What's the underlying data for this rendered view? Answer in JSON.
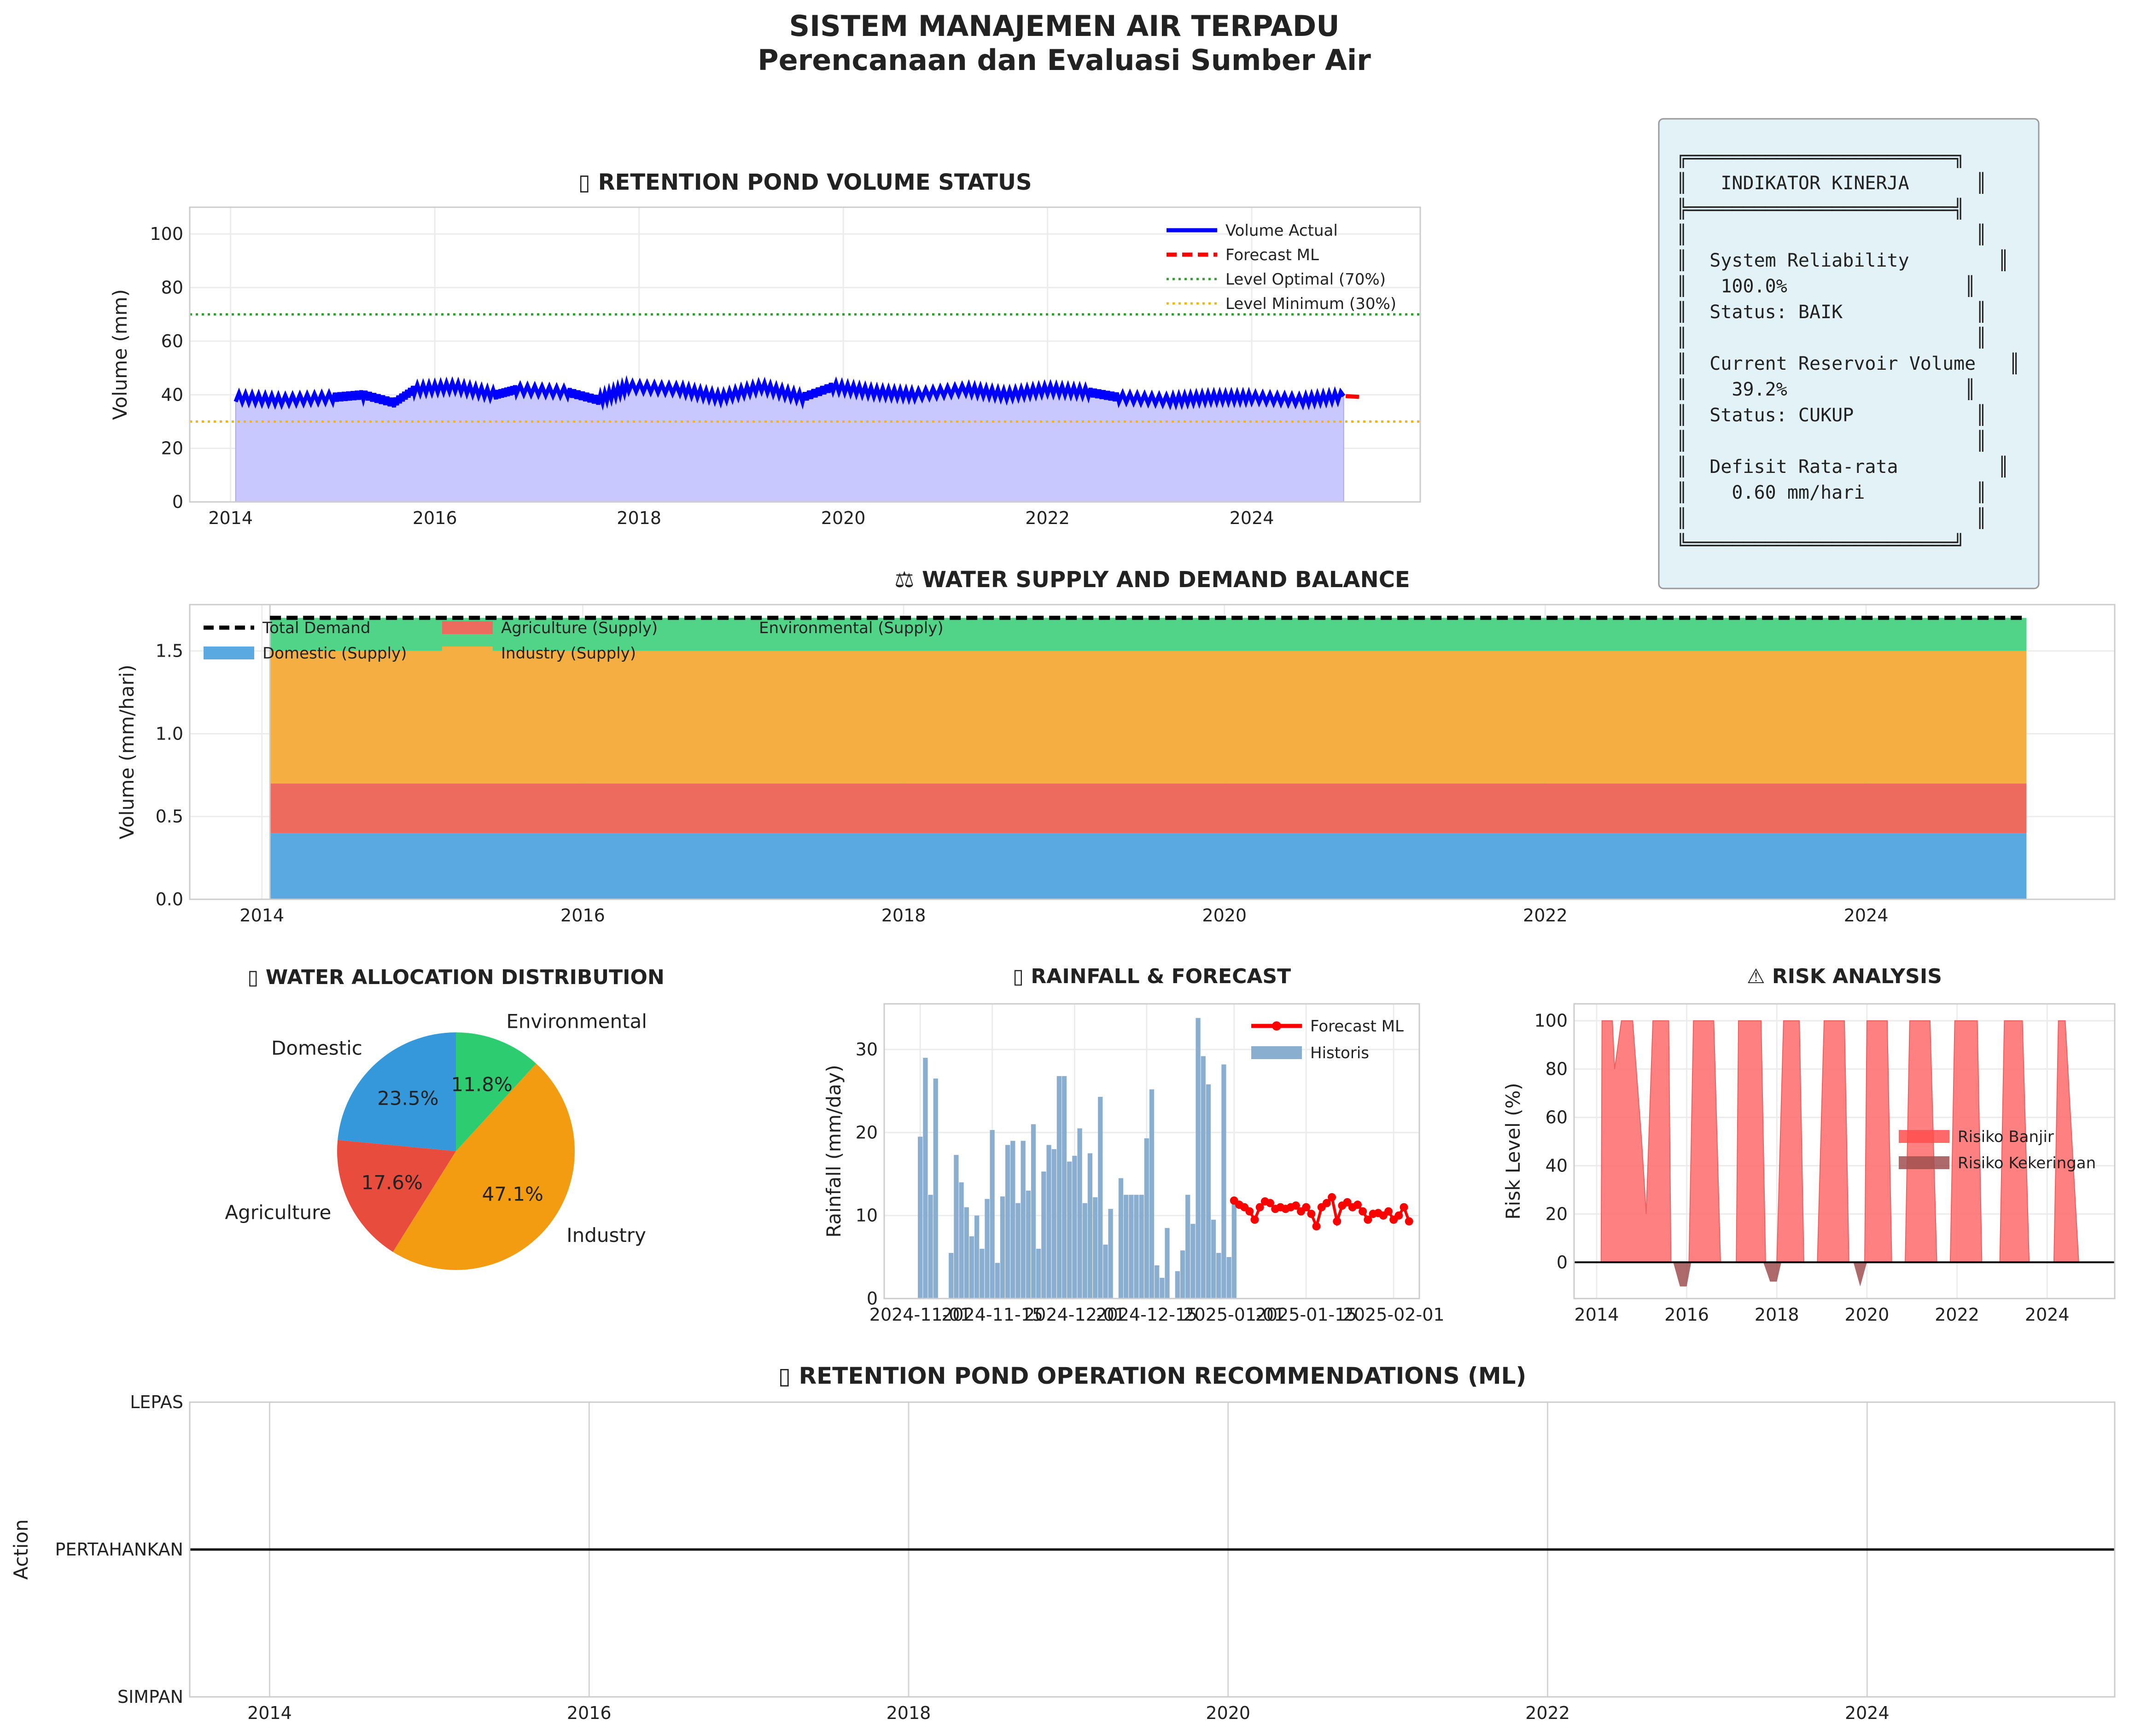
{
  "header": {
    "title": "SISTEM MANAJEMEN AIR TERPADU",
    "subtitle": "Perencanaan dan Evaluasi Sumber Air"
  },
  "kpi_box": {
    "lines": [
      "╔════════════════════════╗",
      "║   INDIKATOR KINERJA      ║",
      "╠════════════════════════╣",
      "║                          ║",
      "║  System Reliability        ║",
      "║   100.0%                ║",
      "║  Status: BAIK            ║",
      "║                          ║",
      "║  Current Reservoir Volume   ║",
      "║    39.2%                ║",
      "║  Status: CUKUP           ║",
      "║                          ║",
      "║  Defisit Rata-rata         ║",
      "║    0.60 mm/hari          ║",
      "║                          ║",
      "╚════════════════════════╝"
    ],
    "bg_color": "#e3f2f6"
  },
  "chart_data": [
    {
      "id": "volume",
      "type": "line",
      "title": "▯ RETENTION POND VOLUME STATUS",
      "ylabel": "Volume (mm)",
      "xlabel": "",
      "xlim": [
        2013.6,
        2025.65
      ],
      "ylim": [
        0,
        110
      ],
      "xticks": [
        2014,
        2016,
        2018,
        2020,
        2022,
        2024
      ],
      "yticks": [
        0,
        20,
        40,
        60,
        80,
        100
      ],
      "grid": true,
      "legend_position": "top-right",
      "series": [
        {
          "name": "Volume Actual",
          "color": "#0000ff",
          "style": "solid",
          "x": [
            2014.05,
            2014.5,
            2015.0,
            2015.3,
            2015.6,
            2015.8,
            2016.2,
            2016.6,
            2016.8,
            2017.3,
            2017.6,
            2017.9,
            2018.4,
            2018.8,
            2019.2,
            2019.6,
            2019.9,
            2020.3,
            2020.7,
            2021.2,
            2021.6,
            2022.0,
            2022.4,
            2022.7,
            2023.2,
            2023.6,
            2024.0,
            2024.5,
            2024.9
          ],
          "y": [
            39,
            38,
            39,
            40,
            37,
            42,
            43,
            40,
            42,
            41,
            38,
            43,
            42,
            39,
            43,
            39,
            43,
            41,
            40,
            42,
            40,
            42,
            41,
            39,
            38,
            39,
            39,
            38,
            39.5
          ]
        },
        {
          "name": "Forecast ML",
          "color": "#ff0000",
          "style": "dashed",
          "x": [
            2024.92,
            2025.05
          ],
          "y": [
            39.5,
            39.2
          ]
        },
        {
          "name": "Level Optimal (70%)",
          "color": "#2ca02c",
          "style": "dotted",
          "value": 70
        },
        {
          "name": "Level Minimum (30%)",
          "color": "#f5b800",
          "style": "dotted",
          "value": 30
        }
      ]
    },
    {
      "id": "balance",
      "type": "area",
      "title": "⚖ WATER SUPPLY AND DEMAND BALANCE",
      "ylabel": "Volume (mm/hari)",
      "xlabel": "",
      "xlim": [
        2013.55,
        2025.55
      ],
      "ylim": [
        0,
        1.78
      ],
      "xticks": [
        2014,
        2016,
        2018,
        2020,
        2022,
        2024
      ],
      "yticks": [
        0.0,
        0.5,
        1.0,
        1.5
      ],
      "grid": true,
      "legend_position": "top-left",
      "x_range": [
        2014.05,
        2025.0
      ],
      "series": [
        {
          "name": "Domestic (Supply)",
          "color": "#5aa9e0",
          "value": 0.4
        },
        {
          "name": "Agriculture (Supply)",
          "color": "#ec6a5e",
          "value": 0.3
        },
        {
          "name": "Industry (Supply)",
          "color": "#f5ae42",
          "value": 0.8
        },
        {
          "name": "Environmental (Supply)",
          "color": "#52d488",
          "value": 0.2
        }
      ],
      "demand": {
        "name": "Total Demand",
        "color": "#000000",
        "value": 1.7
      }
    },
    {
      "id": "allocation",
      "type": "pie",
      "title": "▯ WATER ALLOCATION DISTRIBUTION",
      "slices": [
        {
          "label": "Domestic",
          "value": 23.5,
          "pct": "23.5%",
          "color": "#3498db"
        },
        {
          "label": "Agriculture",
          "value": 17.6,
          "pct": "17.6%",
          "color": "#e74c3c"
        },
        {
          "label": "Industry",
          "value": 47.1,
          "pct": "47.1%",
          "color": "#f39c12"
        },
        {
          "label": "Environmental",
          "value": 11.8,
          "pct": "11.8%",
          "color": "#2ecc71"
        }
      ]
    },
    {
      "id": "rainfall",
      "type": "bar",
      "title": "▯ RAINFALL & FORECAST",
      "ylabel": "Rainfall (mm/day)",
      "xlabel": "",
      "xlim": [
        -7,
        97
      ],
      "ylim": [
        0,
        35.5
      ],
      "xticks": [
        0,
        14,
        30,
        44,
        61,
        75,
        92
      ],
      "xticklabels": [
        "2024-11-01",
        "2024-11-15",
        "2024-12-01",
        "2024-12-15",
        "2025-01-01",
        "2025-01-15",
        "2025-02-01"
      ],
      "yticks": [
        0,
        10,
        20,
        30
      ],
      "grid": true,
      "legend_position": "top-right",
      "historis": {
        "name": "Historis",
        "color": "#8aaed0",
        "x_start": 0,
        "values": [
          19.5,
          29,
          12.5,
          26.5,
          0,
          0,
          5.5,
          17.3,
          14,
          11,
          7.5,
          10,
          6,
          12,
          20.3,
          4.3,
          12.3,
          18.5,
          19,
          11.5,
          19,
          13,
          21,
          6,
          15.3,
          18.5,
          18,
          26.8,
          26.8,
          16.5,
          17.2,
          20.5,
          11.5,
          17.5,
          12.2,
          24.3,
          6.5,
          10.8,
          0,
          14.5,
          12.5,
          12.5,
          12.5,
          12.5,
          19.3,
          25.2,
          4,
          2.5,
          8.5,
          0,
          3.3,
          5.8,
          12.5,
          9,
          33.8,
          29.2,
          25.8,
          9.5,
          5.5,
          28.2,
          5,
          11.5
        ]
      },
      "forecast": {
        "name": "Forecast ML",
        "color": "#ff0000",
        "x_start": 61,
        "values": [
          11.8,
          11.3,
          11,
          10.5,
          9.5,
          11,
          11.7,
          11.5,
          10.8,
          11,
          10.8,
          11,
          11.2,
          10.5,
          11,
          10.2,
          8.7,
          11,
          11.5,
          12.2,
          9.3,
          11.2,
          11.6,
          11,
          11.3,
          10.5,
          9.5,
          10.2,
          10.3,
          10,
          10.5,
          9.5,
          10,
          11,
          9.3
        ]
      }
    },
    {
      "id": "risk",
      "type": "area",
      "title": "⚠ RISK ANALYSIS",
      "ylabel": "Risk Level (%)",
      "xlabel": "",
      "xlim": [
        2013.5,
        2025.5
      ],
      "ylim": [
        -15,
        107
      ],
      "xticks": [
        2014,
        2016,
        2018,
        2020,
        2022,
        2024
      ],
      "yticks": [
        0,
        20,
        40,
        60,
        80,
        100
      ],
      "grid": true,
      "legend_position": "center-right",
      "flood": {
        "name": "Risiko Banjir",
        "color": "#ff6b6b",
        "x": [
          2014.0,
          2014.1,
          2014.12,
          2014.35,
          2014.4,
          2014.55,
          2014.8,
          2015.0,
          2015.1,
          2015.25,
          2015.35,
          2015.6,
          2015.65,
          2016.05,
          2016.15,
          2016.6,
          2016.75,
          2017.1,
          2017.15,
          2017.65,
          2017.75,
          2018.0,
          2018.15,
          2018.5,
          2018.6,
          2018.9,
          2019.05,
          2019.5,
          2019.6,
          2019.95,
          2020.0,
          2020.45,
          2020.55,
          2020.85,
          2020.95,
          2021.4,
          2021.55,
          2021.85,
          2021.95,
          2022.45,
          2022.55,
          2022.95,
          2023.05,
          2023.45,
          2023.6,
          2024.15,
          2024.25,
          2024.4,
          2024.7,
          2025.0
        ],
        "y": [
          0,
          0,
          100,
          100,
          80,
          100,
          100,
          50,
          20,
          100,
          100,
          100,
          0,
          0,
          100,
          100,
          0,
          0,
          100,
          100,
          0,
          0,
          100,
          100,
          0,
          0,
          100,
          100,
          0,
          0,
          100,
          100,
          0,
          0,
          100,
          100,
          0,
          0,
          100,
          100,
          0,
          0,
          100,
          100,
          0,
          0,
          100,
          100,
          0,
          0
        ]
      },
      "drought": {
        "name": "Risiko Kekeringan",
        "color": "#a05050",
        "x": [
          2015.7,
          2015.85,
          2016.0,
          2016.1,
          2017.7,
          2017.85,
          2018.0,
          2018.1,
          2019.7,
          2019.85,
          2020.0
        ],
        "y": [
          0,
          -10,
          -10,
          0,
          0,
          -8,
          -8,
          0,
          0,
          -10,
          0
        ]
      }
    },
    {
      "id": "operations",
      "type": "line",
      "title": "▯ RETENTION POND OPERATION RECOMMENDATIONS (ML)",
      "ylabel": "Action",
      "xlabel": "",
      "xlim": [
        2013.5,
        2025.55
      ],
      "ylim": [
        -1,
        1
      ],
      "xticks": [
        2014,
        2016,
        2018,
        2020,
        2022,
        2024
      ],
      "yticks": [
        -1,
        0,
        1
      ],
      "yticklabels": [
        "SIMPAN",
        "PERTAHANKAN",
        "LEPAS"
      ],
      "grid": true,
      "series": [
        {
          "name": "",
          "color": "#000000",
          "x": [
            2013.5,
            2025.55
          ],
          "y": [
            0,
            0
          ]
        }
      ]
    }
  ]
}
